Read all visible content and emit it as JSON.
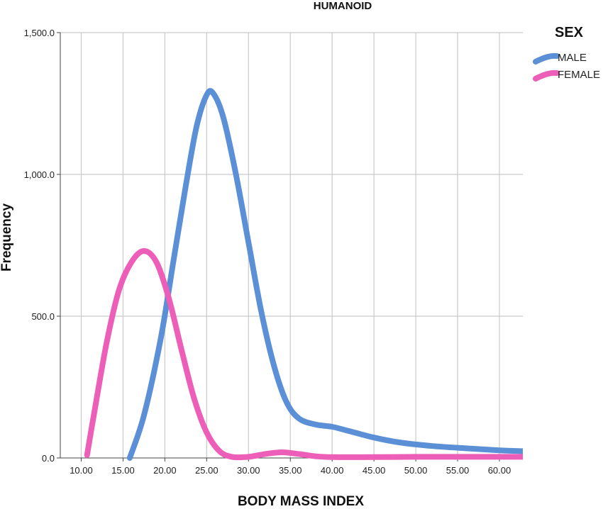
{
  "chart_data": {
    "type": "line",
    "title": "HUMANOID",
    "xlabel": "BODY MASS INDEX",
    "ylabel": "Frequency",
    "xlim": [
      7.5,
      62.8
    ],
    "ylim": [
      0,
      1500
    ],
    "x_ticks": [
      10,
      15,
      20,
      25,
      30,
      35,
      40,
      45,
      50,
      55,
      60
    ],
    "x_tick_labels": [
      "10.00",
      "15.00",
      "20.00",
      "25.00",
      "30.00",
      "35.00",
      "40.00",
      "45.00",
      "50.00",
      "55.00",
      "60.00"
    ],
    "y_ticks": [
      0,
      500,
      1000,
      1500
    ],
    "y_tick_labels": [
      "0.0",
      "500.0",
      "1,000.0",
      "1,500.0"
    ],
    "grid": true,
    "legend": {
      "title": "SEX",
      "position": "right"
    },
    "series": [
      {
        "name": "MALE",
        "color": "#5b8fd6",
        "points": [
          [
            15.8,
            0
          ],
          [
            17.5,
            150
          ],
          [
            19.5,
            420
          ],
          [
            21,
            690
          ],
          [
            22.5,
            960
          ],
          [
            23.8,
            1170
          ],
          [
            25,
            1280
          ],
          [
            25.8,
            1285
          ],
          [
            27,
            1200
          ],
          [
            28.5,
            1000
          ],
          [
            30,
            760
          ],
          [
            31.5,
            520
          ],
          [
            33,
            330
          ],
          [
            34.5,
            200
          ],
          [
            36,
            140
          ],
          [
            38,
            118
          ],
          [
            40,
            110
          ],
          [
            42,
            95
          ],
          [
            45,
            72
          ],
          [
            48,
            55
          ],
          [
            52,
            42
          ],
          [
            56,
            34
          ],
          [
            60,
            27
          ],
          [
            62.8,
            24
          ]
        ]
      },
      {
        "name": "FEMALE",
        "color": "#ec5eb8",
        "points": [
          [
            10.7,
            10
          ],
          [
            11.5,
            150
          ],
          [
            13,
            400
          ],
          [
            14.5,
            590
          ],
          [
            16,
            690
          ],
          [
            17.5,
            730
          ],
          [
            19,
            690
          ],
          [
            20.5,
            560
          ],
          [
            22,
            380
          ],
          [
            23.5,
            210
          ],
          [
            25,
            90
          ],
          [
            26.5,
            25
          ],
          [
            28,
            4
          ],
          [
            30,
            4
          ],
          [
            32,
            14
          ],
          [
            34,
            20
          ],
          [
            36,
            14
          ],
          [
            38,
            6
          ],
          [
            40,
            3
          ],
          [
            45,
            3
          ],
          [
            50,
            4
          ],
          [
            55,
            4
          ],
          [
            60,
            4
          ],
          [
            62.8,
            4
          ]
        ]
      }
    ]
  }
}
